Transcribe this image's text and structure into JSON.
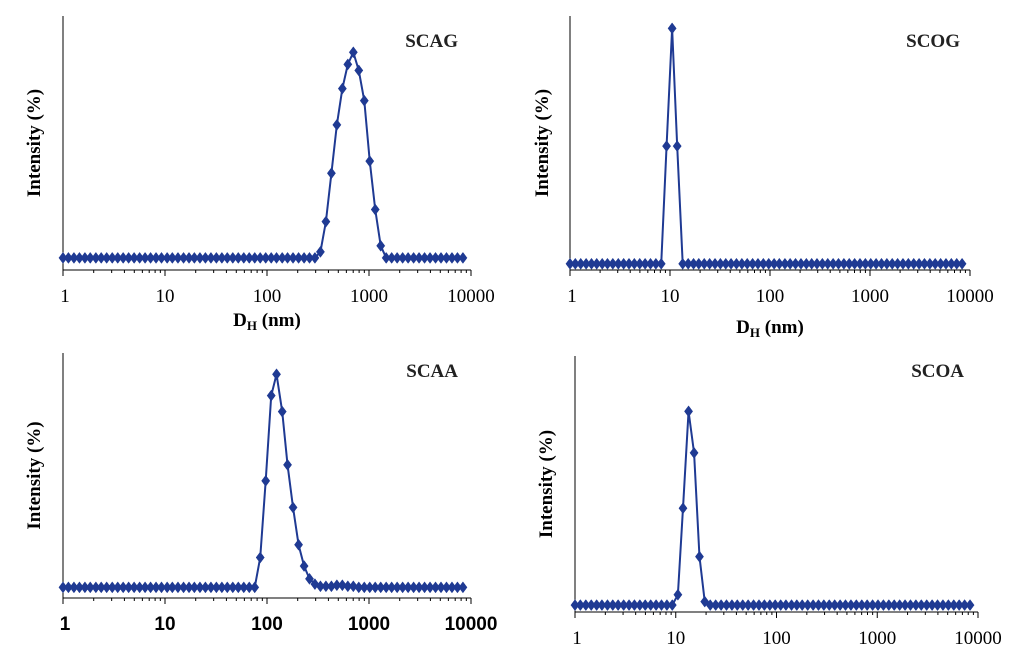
{
  "chart_data": [
    {
      "type": "line",
      "title": "SCAG",
      "xlabel_main": "D",
      "xlabel_sub": "H",
      "xlabel_unit": " (nm)",
      "ylabel": "Intensity (%)",
      "xscale": "log",
      "xlim": [
        1,
        10000
      ],
      "ylim": [
        -1,
        20
      ],
      "xticks": [
        "1",
        "10",
        "100",
        "1000",
        "10000"
      ],
      "color": "#1f3a93",
      "marker": "diamond",
      "x": [
        1,
        1.13,
        1.28,
        1.45,
        1.64,
        1.85,
        2.1,
        2.37,
        2.68,
        3.04,
        3.44,
        3.89,
        4.4,
        4.98,
        5.64,
        6.38,
        7.22,
        8.17,
        9.24,
        10.5,
        11.8,
        13.4,
        15.2,
        17.2,
        19.4,
        22,
        24.9,
        28.2,
        31.9,
        36.1,
        40.8,
        46.2,
        52.3,
        59.2,
        67,
        75.8,
        85.8,
        97.1,
        110,
        124,
        141,
        159,
        180,
        204,
        231,
        261,
        295,
        334,
        378,
        428,
        484,
        548,
        620,
        702,
        794,
        899,
        1017,
        1151,
        1303,
        1474,
        1668,
        1888,
        2137,
        2418,
        2737,
        3097,
        3505,
        3967,
        4489,
        5081,
        5750,
        6507,
        7364,
        8334
      ],
      "y": [
        0,
        0,
        0,
        0,
        0,
        0,
        0,
        0,
        0,
        0,
        0,
        0,
        0,
        0,
        0,
        0,
        0,
        0,
        0,
        0,
        0,
        0,
        0,
        0,
        0,
        0,
        0,
        0,
        0,
        0,
        0,
        0,
        0,
        0,
        0,
        0,
        0,
        0,
        0,
        0,
        0,
        0,
        0,
        0,
        0,
        0,
        0,
        0.5,
        3,
        7,
        11,
        14,
        16,
        17,
        15.5,
        13,
        8,
        4,
        1,
        0,
        0,
        0,
        0,
        0,
        0,
        0,
        0,
        0,
        0,
        0,
        0,
        0,
        0,
        0
      ]
    },
    {
      "type": "line",
      "title": "SCOG",
      "xlabel_main": "D",
      "xlabel_sub": "H",
      "xlabel_unit": " (nm)",
      "ylabel": "Intensity (%)",
      "xscale": "log",
      "xlim": [
        1,
        10000
      ],
      "ylim": [
        -1,
        40
      ],
      "xticks": [
        "1",
        "10",
        "100",
        "1000",
        "10000"
      ],
      "color": "#1f3a93",
      "marker": "diamond",
      "x": [
        1,
        1.13,
        1.28,
        1.45,
        1.64,
        1.85,
        2.1,
        2.37,
        2.68,
        3.04,
        3.44,
        3.89,
        4.4,
        4.98,
        5.64,
        6.38,
        7.22,
        8.17,
        9.24,
        10.5,
        11.8,
        13.4,
        15.2,
        17.2,
        19.4,
        22,
        24.9,
        28.2,
        31.9,
        36.1,
        40.8,
        46.2,
        52.3,
        59.2,
        67,
        75.8,
        85.8,
        97.1,
        110,
        124,
        141,
        159,
        180,
        204,
        231,
        261,
        295,
        334,
        378,
        428,
        484,
        548,
        620,
        702,
        794,
        899,
        1017,
        1151,
        1303,
        1474,
        1668,
        1888,
        2137,
        2418,
        2737,
        3097,
        3505,
        3967,
        4489,
        5081,
        5750,
        6507,
        7364,
        8334
      ],
      "y": [
        0,
        0,
        0,
        0,
        0,
        0,
        0,
        0,
        0,
        0,
        0,
        0,
        0,
        0,
        0,
        0,
        0,
        0,
        19,
        38,
        19,
        0,
        0,
        0,
        0,
        0,
        0,
        0,
        0,
        0,
        0,
        0,
        0,
        0,
        0,
        0,
        0,
        0,
        0,
        0,
        0,
        0,
        0,
        0,
        0,
        0,
        0,
        0,
        0,
        0,
        0,
        0,
        0,
        0,
        0,
        0,
        0,
        0,
        0,
        0,
        0,
        0,
        0,
        0,
        0,
        0,
        0,
        0,
        0,
        0,
        0,
        0,
        0,
        0
      ]
    },
    {
      "type": "line",
      "title": "SCAA",
      "ylabel": "Intensity (%)",
      "xscale": "log",
      "xlim": [
        1,
        10000
      ],
      "ylim": [
        -1,
        22
      ],
      "xticks": [
        "1",
        "10",
        "100",
        "1000",
        "10000"
      ],
      "color": "#1f3a93",
      "marker": "diamond",
      "x": [
        1,
        1.13,
        1.28,
        1.45,
        1.64,
        1.85,
        2.1,
        2.37,
        2.68,
        3.04,
        3.44,
        3.89,
        4.4,
        4.98,
        5.64,
        6.38,
        7.22,
        8.17,
        9.24,
        10.5,
        11.8,
        13.4,
        15.2,
        17.2,
        19.4,
        22,
        24.9,
        28.2,
        31.9,
        36.1,
        40.8,
        46.2,
        52.3,
        59.2,
        67,
        75.8,
        85.8,
        97.1,
        110,
        124,
        141,
        159,
        180,
        204,
        231,
        261,
        295,
        334,
        378,
        428,
        484,
        548,
        620,
        702,
        794,
        899,
        1017,
        1151,
        1303,
        1474,
        1668,
        1888,
        2137,
        2418,
        2737,
        3097,
        3505,
        3967,
        4489,
        5081,
        5750,
        6507,
        7364,
        8334
      ],
      "y": [
        0,
        0,
        0,
        0,
        0,
        0,
        0,
        0,
        0,
        0,
        0,
        0,
        0,
        0,
        0,
        0,
        0,
        0,
        0,
        0,
        0,
        0,
        0,
        0,
        0,
        0,
        0,
        0,
        0,
        0,
        0,
        0,
        0,
        0,
        0,
        0,
        2.8,
        10,
        18,
        20,
        16.5,
        11.5,
        7.5,
        4,
        2,
        0.8,
        0.3,
        0.1,
        0.1,
        0.1,
        0.2,
        0.2,
        0.1,
        0.1,
        0,
        0,
        0,
        0,
        0,
        0,
        0,
        0,
        0,
        0,
        0,
        0,
        0,
        0,
        0,
        0,
        0,
        0,
        0,
        0
      ]
    },
    {
      "type": "line",
      "title": "SCOA",
      "ylabel": "Intensity (%)",
      "xscale": "log",
      "xlim": [
        1,
        10000
      ],
      "ylim": [
        -1,
        36
      ],
      "xticks": [
        "1",
        "10",
        "100",
        "1000",
        "10000"
      ],
      "color": "#1f3a93",
      "marker": "diamond",
      "x": [
        1,
        1.13,
        1.28,
        1.45,
        1.64,
        1.85,
        2.1,
        2.37,
        2.68,
        3.04,
        3.44,
        3.89,
        4.4,
        4.98,
        5.64,
        6.38,
        7.22,
        8.17,
        9.24,
        10.5,
        11.8,
        13.4,
        15.2,
        17.2,
        19.4,
        22,
        24.9,
        28.2,
        31.9,
        36.1,
        40.8,
        46.2,
        52.3,
        59.2,
        67,
        75.8,
        85.8,
        97.1,
        110,
        124,
        141,
        159,
        180,
        204,
        231,
        261,
        295,
        334,
        378,
        428,
        484,
        548,
        620,
        702,
        794,
        899,
        1017,
        1151,
        1303,
        1474,
        1668,
        1888,
        2137,
        2418,
        2737,
        3097,
        3505,
        3967,
        4489,
        5081,
        5750,
        6507,
        7364,
        8334
      ],
      "y": [
        0,
        0,
        0,
        0,
        0,
        0,
        0,
        0,
        0,
        0,
        0,
        0,
        0,
        0,
        0,
        0,
        0,
        0,
        0,
        1.5,
        14,
        28,
        22,
        7,
        0.5,
        0,
        0,
        0,
        0,
        0,
        0,
        0,
        0,
        0,
        0,
        0,
        0,
        0,
        0,
        0,
        0,
        0,
        0,
        0,
        0,
        0,
        0,
        0,
        0,
        0,
        0,
        0,
        0,
        0,
        0,
        0,
        0,
        0,
        0,
        0,
        0,
        0,
        0,
        0,
        0,
        0,
        0,
        0,
        0,
        0,
        0,
        0,
        0,
        0
      ]
    }
  ]
}
